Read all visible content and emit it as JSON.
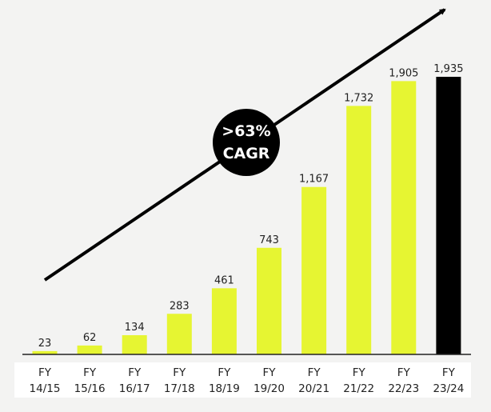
{
  "chart_data": {
    "type": "bar",
    "title": "",
    "xlabel": "",
    "ylabel": "",
    "categories": [
      [
        "FY",
        "14/15"
      ],
      [
        "FY",
        "15/16"
      ],
      [
        "FY",
        "16/17"
      ],
      [
        "FY",
        "17/18"
      ],
      [
        "FY",
        "18/19"
      ],
      [
        "FY",
        "19/20"
      ],
      [
        "FY",
        "20/21"
      ],
      [
        "FY",
        "21/22"
      ],
      [
        "FY",
        "22/23"
      ],
      [
        "FY",
        "23/24"
      ]
    ],
    "values": [
      23,
      62,
      134,
      283,
      461,
      743,
      1167,
      1732,
      1905,
      1935
    ],
    "value_labels": [
      "23",
      "62",
      "134",
      "283",
      "461",
      "743",
      "1,167",
      "1,732",
      "1,905",
      "1,935"
    ],
    "ylim": [
      0,
      1935
    ],
    "grid": false,
    "highlight_index": 9,
    "annotation": {
      "line1": ">63%",
      "line2": "CAGR"
    },
    "colors": {
      "bar": "#e6f532",
      "highlight": "#000000",
      "text": "#222222",
      "arrow": "#000000"
    }
  }
}
